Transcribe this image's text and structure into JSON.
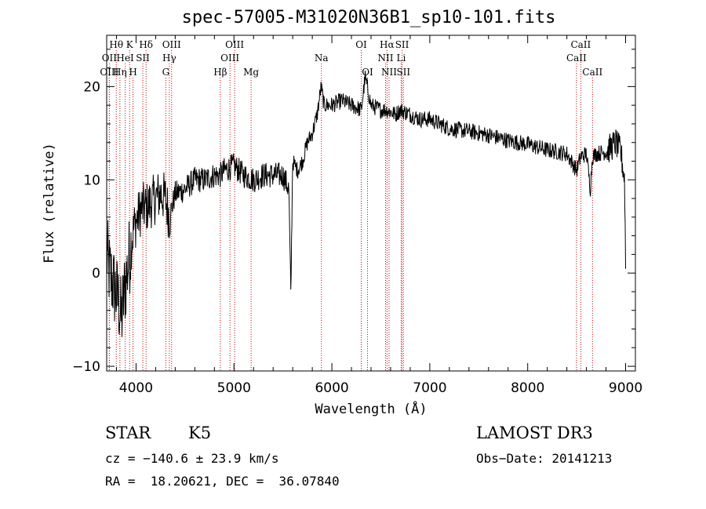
{
  "chart_data": {
    "type": "line",
    "title": "spec-57005-M31020N36B1_sp10-101.fits",
    "xlabel": "Wavelength (Å)",
    "ylabel": "Flux (relative)",
    "xlim": [
      3700,
      9100
    ],
    "ylim": [
      -10.5,
      25.5
    ],
    "xticks": [
      4000,
      5000,
      6000,
      7000,
      8000,
      9000
    ],
    "xtick_labels": [
      "4000",
      "5000",
      "6000",
      "7000",
      "8000",
      "9000"
    ],
    "yticks": [
      -10,
      0,
      10,
      20
    ],
    "ytick_labels": [
      "−10",
      "0",
      "10",
      "20"
    ],
    "line_color": "#000000",
    "marker_color": "#cc0000",
    "spectrum_anchors": {
      "x": [
        3700,
        3730,
        3760,
        3790,
        3820,
        3850,
        3880,
        3920,
        3950,
        3980,
        4020,
        4060,
        4100,
        4150,
        4200,
        4250,
        4300,
        4340,
        4400,
        4500,
        4600,
        4700,
        4800,
        4860,
        4900,
        5000,
        5100,
        5200,
        5300,
        5400,
        5500,
        5560,
        5580,
        5600,
        5650,
        5700,
        5750,
        5800,
        5850,
        5890,
        5920,
        6000,
        6100,
        6200,
        6300,
        6340,
        6400,
        6500,
        6560,
        6650,
        6700,
        6800,
        6900,
        7000,
        7100,
        7200,
        7400,
        7600,
        7800,
        8000,
        8200,
        8400,
        8500,
        8540,
        8600,
        8640,
        8660,
        8700,
        8800,
        8900,
        8950,
        8990,
        9000
      ],
      "y": [
        2,
        0,
        -1,
        -2,
        -3,
        -5,
        -2,
        1,
        3,
        5,
        6,
        7,
        7,
        7.5,
        8,
        8.5,
        8,
        6,
        8.5,
        9,
        10,
        10,
        10.5,
        10.5,
        11,
        11.5,
        10.5,
        10,
        10.5,
        10.5,
        10.5,
        9,
        -2.5,
        12,
        11,
        12,
        14,
        15,
        17,
        20,
        18,
        18,
        18.5,
        18,
        17.5,
        21,
        18,
        17.5,
        17.5,
        17,
        17.5,
        17,
        16.5,
        16.5,
        16,
        15.5,
        15.2,
        14.8,
        14.2,
        13.8,
        13.2,
        12.8,
        11,
        12.5,
        12.8,
        9,
        12.5,
        12.8,
        13,
        14,
        13,
        10,
        1
      ]
    },
    "line_markers": [
      {
        "label": "Hθ",
        "x": 3798,
        "row": 1
      },
      {
        "label": "K",
        "x": 3934,
        "row": 1
      },
      {
        "label": "Hδ",
        "x": 4102,
        "row": 1
      },
      {
        "label": "OIII",
        "x": 4363,
        "row": 1
      },
      {
        "label": "OIII",
        "x": 5007,
        "row": 1
      },
      {
        "label": "OI",
        "x": 6300,
        "row": 1
      },
      {
        "label": "Hα",
        "x": 6563,
        "row": 1
      },
      {
        "label": "SII",
        "x": 6717,
        "row": 1
      },
      {
        "label": "CaII",
        "x": 8542,
        "row": 1
      },
      {
        "label": "OII",
        "x": 3727,
        "row": 2
      },
      {
        "label": "HeI",
        "x": 3889,
        "row": 2
      },
      {
        "label": "SII",
        "x": 4069,
        "row": 2
      },
      {
        "label": "Hγ",
        "x": 4340,
        "row": 2
      },
      {
        "label": "OIII",
        "x": 4959,
        "row": 2
      },
      {
        "label": "Na",
        "x": 5893,
        "row": 2
      },
      {
        "label": "NII",
        "x": 6548,
        "row": 2
      },
      {
        "label": "Li",
        "x": 6708,
        "row": 2
      },
      {
        "label": "CaII",
        "x": 8498,
        "row": 2
      },
      {
        "label": "OIII",
        "x": 3727,
        "row": 3
      },
      {
        "label": "Hη",
        "x": 3835,
        "row": 3
      },
      {
        "label": "H",
        "x": 3969,
        "row": 3
      },
      {
        "label": "G",
        "x": 4304,
        "row": 3
      },
      {
        "label": "Hβ",
        "x": 4861,
        "row": 3
      },
      {
        "label": "Mg",
        "x": 5175,
        "row": 3
      },
      {
        "label": "OI",
        "x": 6364,
        "row": 3
      },
      {
        "label": "NII",
        "x": 6584,
        "row": 3
      },
      {
        "label": "SII",
        "x": 6731,
        "row": 3
      },
      {
        "label": "CaII",
        "x": 8662,
        "row": 3
      }
    ]
  },
  "info": {
    "class_label": "STAR",
    "subclass_label": "K5",
    "survey_label": "LAMOST DR3",
    "cz_text": "cz = −140.6 ± 23.9 km/s",
    "obs_date_text": "Obs−Date: 20141213",
    "coords_text": "RA =  18.20621, DEC =  36.07840"
  }
}
